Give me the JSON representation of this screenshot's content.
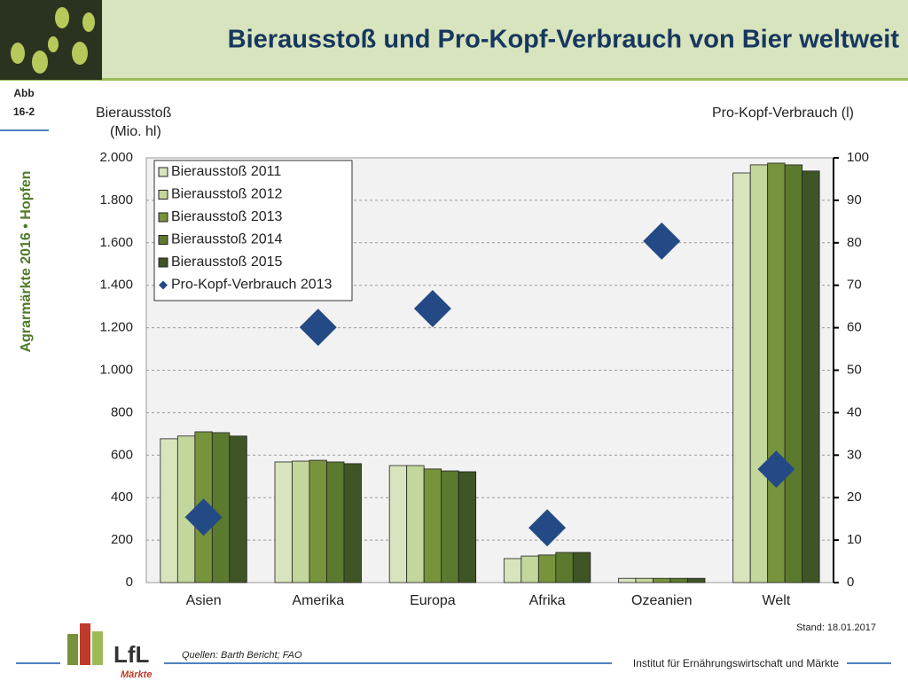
{
  "slide": {
    "title": "Bierausstoß und Pro-Kopf-Verbrauch von Bier weltweit",
    "fig_label": "Abb",
    "fig_number": "16-2",
    "sidebar": "Agrarmärkte 2016  •  Hopfen",
    "date": "Stand: 18.01.2017",
    "source": "Quellen: Barth Bericht; FAO",
    "institute": "Institut für Ernährungswirtschaft und Märkte",
    "logo": "LfL",
    "logo_sub": "Märkte"
  },
  "chart_data": {
    "type": "bar",
    "ylabel": [
      "Bierausstoß",
      "(Mio. hl)"
    ],
    "y2label": "Pro-Kopf-Verbrauch (l)",
    "categories": [
      "Asien",
      "Amerika",
      "Europa",
      "Afrika",
      "Ozeanien",
      "Welt"
    ],
    "series": [
      {
        "name": "Bierausstoß 2011",
        "color": "#d7e4bd",
        "values": [
          677,
          568,
          551,
          113,
          20,
          1929
        ]
      },
      {
        "name": "Bierausstoß 2012",
        "color": "#c3d69b",
        "values": [
          690,
          572,
          551,
          125,
          20,
          1967
        ]
      },
      {
        "name": "Bierausstoß 2013",
        "color": "#77933c",
        "values": [
          710,
          576,
          535,
          130,
          20,
          1975
        ]
      },
      {
        "name": "Bierausstoß 2014",
        "color": "#5b7a2e",
        "values": [
          706,
          568,
          526,
          142,
          20,
          1967
        ]
      },
      {
        "name": "Bierausstoß 2015",
        "color": "#3f5526",
        "values": [
          690,
          560,
          522,
          142,
          20,
          1938
        ]
      },
      {
        "name": "Pro-Kopf-Verbrauch 2013",
        "color": "#244a85",
        "axis": "y2",
        "marker": "diamond",
        "values": [
          15.4,
          60.1,
          64.5,
          12.9,
          80.4,
          26.7
        ]
      }
    ],
    "ylim": [
      0,
      2000
    ],
    "yticks": [
      0,
      200,
      400,
      600,
      800,
      {
        "value": 1000,
        "label": "1.000"
      },
      {
        "value": 1200,
        "label": "1.200"
      },
      {
        "value": 1400,
        "label": "1.400"
      },
      {
        "value": 1600,
        "label": "1.600"
      },
      {
        "value": 1800,
        "label": "1.800"
      },
      {
        "value": 2000,
        "label": "2.000"
      }
    ],
    "y2lim": [
      0,
      100
    ],
    "y2ticks": [
      0,
      10,
      20,
      30,
      40,
      50,
      60,
      70,
      80,
      90,
      100
    ],
    "grid": true,
    "legend": "upper left"
  }
}
